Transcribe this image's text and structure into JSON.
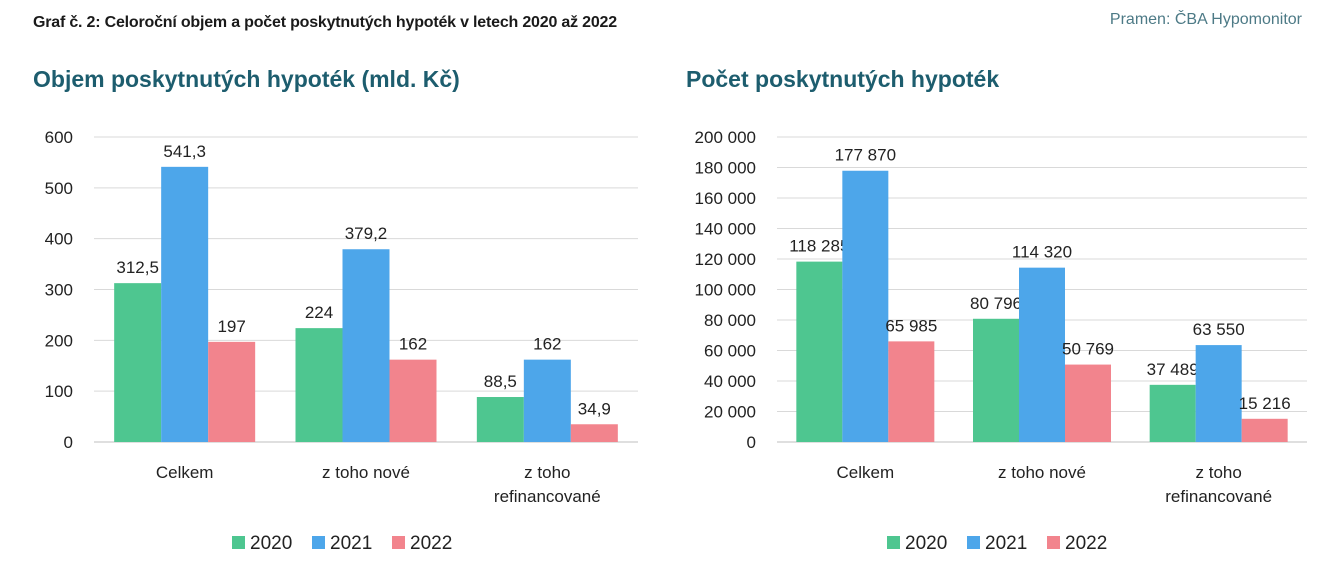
{
  "figure_title": "Graf č. 2: Celoroční objem a počet poskytnutých hypoték v letech 2020 až 2022",
  "source": "Pramen: ČBA Hypomonitor",
  "colors": {
    "2020": "#4ec690",
    "2021": "#4da6ea",
    "2022": "#f2848d",
    "grid": "#d9d9d9",
    "axis": "#bfbfbf"
  },
  "chart_data": [
    {
      "type": "bar",
      "title": "Objem poskytnutých hypoték (mld. Kč)",
      "categories": [
        [
          "Celkem"
        ],
        [
          "z toho nové"
        ],
        [
          "z toho",
          "refinancované"
        ]
      ],
      "series": [
        {
          "name": "2020",
          "values": [
            312.5,
            224,
            88.5
          ],
          "labels": [
            "312,5",
            "224",
            "88,5"
          ]
        },
        {
          "name": "2021",
          "values": [
            541.3,
            379.2,
            162
          ],
          "labels": [
            "541,3",
            "379,2",
            "162"
          ]
        },
        {
          "name": "2022",
          "values": [
            197,
            162,
            34.9
          ],
          "labels": [
            "197",
            "162",
            "34,9"
          ]
        }
      ],
      "ylim": [
        0,
        600
      ],
      "yticks": [
        0,
        100,
        200,
        300,
        400,
        500,
        600
      ],
      "ytick_labels": [
        "0",
        "100",
        "200",
        "300",
        "400",
        "500",
        "600"
      ],
      "grid": true,
      "legend": "bottom"
    },
    {
      "type": "bar",
      "title": "Počet poskytnutých hypoték",
      "categories": [
        [
          "Celkem"
        ],
        [
          "z toho nové"
        ],
        [
          "z toho",
          "refinancované"
        ]
      ],
      "series": [
        {
          "name": "2020",
          "values": [
            118285,
            80796,
            37489
          ],
          "labels": [
            "118 285",
            "80 796",
            "37 489"
          ]
        },
        {
          "name": "2021",
          "values": [
            177870,
            114320,
            63550
          ],
          "labels": [
            "177 870",
            "114 320",
            "63 550"
          ]
        },
        {
          "name": "2022",
          "values": [
            65985,
            50769,
            15216
          ],
          "labels": [
            "65 985",
            "50 769",
            "15 216"
          ]
        }
      ],
      "ylim": [
        0,
        200000
      ],
      "yticks": [
        0,
        20000,
        40000,
        60000,
        80000,
        100000,
        120000,
        140000,
        160000,
        180000,
        200000
      ],
      "ytick_labels": [
        "0",
        "20 000",
        "40 000",
        "60 000",
        "80 000",
        "100 000",
        "120 000",
        "140 000",
        "160 000",
        "180 000",
        "200 000"
      ],
      "grid": true,
      "legend": "bottom"
    }
  ]
}
